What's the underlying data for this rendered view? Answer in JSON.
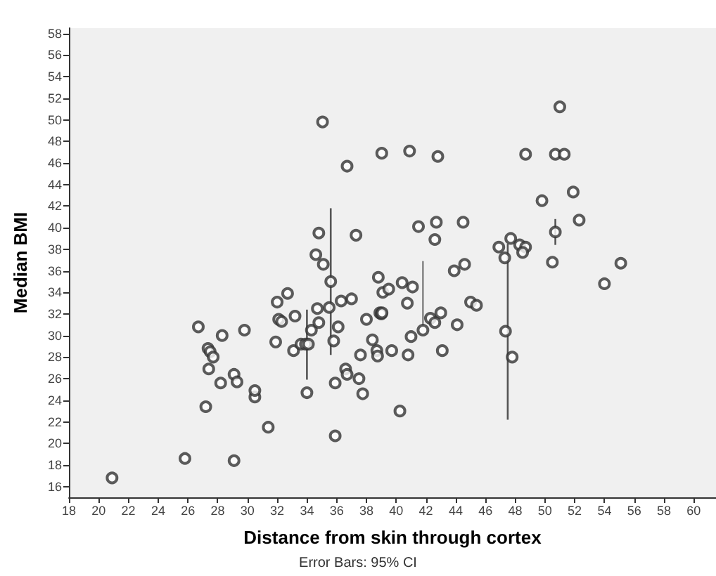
{
  "chart_data": {
    "type": "scatter",
    "xlabel": "Distance from skin through cortex",
    "ylabel": "Median BMI",
    "annotations": [
      "Error Bars: 95% CI"
    ],
    "xlim": [
      18,
      61.5
    ],
    "xticks": [
      18,
      20,
      22,
      24,
      26,
      28,
      30,
      32,
      34,
      36,
      38,
      40,
      42,
      44,
      46,
      48,
      50,
      52,
      54,
      56,
      58,
      60
    ],
    "ylim": [
      15,
      58.5
    ],
    "yticks": [
      16,
      18,
      20,
      22,
      24,
      26,
      28,
      30,
      32,
      34,
      36,
      38,
      40,
      42,
      44,
      46,
      48,
      50,
      52,
      54,
      56,
      58
    ],
    "grid": false,
    "marker": "circle",
    "series": [
      {
        "color": "#333333",
        "x": [
          20.9,
          25.8,
          29.1,
          31.4,
          35.9,
          27.2,
          34.0,
          30.5,
          30.5,
          28.2,
          29.1,
          29.3,
          27.4,
          27.35,
          27.5,
          27.7,
          26.7,
          28.3,
          29.8,
          31.9,
          32.0,
          32.7,
          32.1,
          32.3,
          33.2,
          33.1,
          33.6,
          33.9,
          34.1,
          34.3,
          34.7,
          34.8,
          35.5,
          35.8,
          35.9,
          36.1,
          36.3,
          37.0,
          38.0,
          36.6,
          36.7,
          37.5,
          37.75,
          37.6,
          38.4,
          38.7,
          38.75,
          38.9,
          39.0,
          39.7,
          35.05,
          39.03,
          36.7,
          34.8,
          37.3,
          34.6,
          35.1,
          35.6,
          38.8,
          39.1,
          39.5,
          40.9,
          42.8,
          51.0,
          48.7,
          50.7,
          51.3,
          51.9,
          49.8,
          52.3,
          41.5,
          42.7,
          44.5,
          42.6,
          50.7,
          46.9,
          47.7,
          48.3,
          48.7,
          48.5,
          47.3,
          43.9,
          44.6,
          50.5,
          55.1,
          54.0,
          40.4,
          41.1,
          39.05,
          40.75,
          45.0,
          45.4,
          42.3,
          43.0,
          42.6,
          44.1,
          41.8,
          41.0,
          40.8,
          43.1,
          47.35,
          47.8,
          40.25
        ],
        "values": [
          16.8,
          18.6,
          18.4,
          21.5,
          20.7,
          23.4,
          24.7,
          24.3,
          24.9,
          25.6,
          26.4,
          25.7,
          26.9,
          28.8,
          28.5,
          28.0,
          30.8,
          30.0,
          30.5,
          29.4,
          33.1,
          33.9,
          31.5,
          31.3,
          31.8,
          28.6,
          29.2,
          29.2,
          29.2,
          30.5,
          32.5,
          31.2,
          32.6,
          29.5,
          25.6,
          30.8,
          33.2,
          33.4,
          31.5,
          26.9,
          26.4,
          26.0,
          24.6,
          28.2,
          29.6,
          28.6,
          28.1,
          32.1,
          32.0,
          28.6,
          49.8,
          46.9,
          45.7,
          39.5,
          39.3,
          37.5,
          36.6,
          35.0,
          35.4,
          34.0,
          34.3,
          47.1,
          46.6,
          51.2,
          46.8,
          46.8,
          46.8,
          43.3,
          42.5,
          40.7,
          40.1,
          40.5,
          40.5,
          38.9,
          39.6,
          38.2,
          39.0,
          38.4,
          38.2,
          37.7,
          37.2,
          36.0,
          36.6,
          36.8,
          36.7,
          34.8,
          34.9,
          34.5,
          32.1,
          33.0,
          33.1,
          32.8,
          31.6,
          32.1,
          31.2,
          31.0,
          30.5,
          29.9,
          28.2,
          28.6,
          30.4,
          28.0,
          23.0
        ]
      },
      {
        "type": "line",
        "color": "#555555",
        "marker": "none",
        "x": [
          34.0,
          34.0
        ],
        "values": [
          25.9,
          32.4
        ]
      },
      {
        "type": "line",
        "color": "#555555",
        "marker": "none",
        "x": [
          35.6,
          35.6
        ],
        "values": [
          28.2,
          41.8
        ]
      },
      {
        "type": "line",
        "color": "#888888",
        "marker": "none",
        "x": [
          41.8,
          41.8
        ],
        "values": [
          30.8,
          36.9
        ]
      },
      {
        "type": "line",
        "color": "#555555",
        "marker": "none",
        "x": [
          47.5,
          47.5
        ],
        "values": [
          22.2,
          38.5
        ]
      },
      {
        "type": "line",
        "color": "#555555",
        "marker": "none",
        "x": [
          50.7,
          50.7
        ],
        "values": [
          38.4,
          40.8
        ]
      }
    ]
  }
}
